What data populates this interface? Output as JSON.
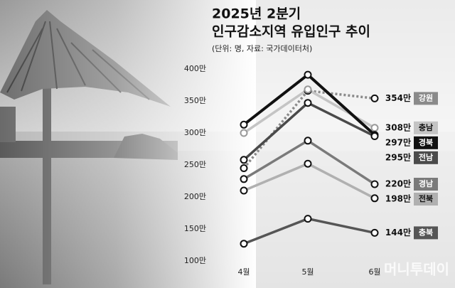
{
  "chart_data": {
    "type": "line",
    "title": [
      "2025년 2분기",
      "인구감소지역 유입인구 추이"
    ],
    "subtitle": "(단위: 명, 자료: 국가데이터처)",
    "categories": [
      "4월",
      "5월",
      "6월"
    ],
    "ylim": [
      100,
      400
    ],
    "yticks": [
      {
        "value": 100,
        "label": "100만"
      },
      {
        "value": 150,
        "label": "150만"
      },
      {
        "value": 200,
        "label": "200만"
      },
      {
        "value": 250,
        "label": "250만"
      },
      {
        "value": 300,
        "label": "300만"
      },
      {
        "value": 350,
        "label": "350만"
      },
      {
        "value": 400,
        "label": "400만"
      }
    ],
    "series": [
      {
        "name": "강원",
        "color": "#8a8a8a",
        "dashed": true,
        "values": [
          245,
          366,
          354
        ],
        "value_labels": [
          null,
          null,
          "354만"
        ]
      },
      {
        "name": "충남",
        "color": "#c4c4c4",
        "values": [
          300,
          368,
          308
        ],
        "value_labels": [
          null,
          null,
          "308만"
        ]
      },
      {
        "name": "경북",
        "color": "#111111",
        "values": [
          313,
          391,
          297
        ],
        "value_labels": [
          null,
          null,
          "297만"
        ]
      },
      {
        "name": "전남",
        "color": "#4a4a4a",
        "values": [
          258,
          347,
          295
        ],
        "value_labels": [
          null,
          null,
          "295만"
        ]
      },
      {
        "name": "경남",
        "color": "#7a7a7a",
        "values": [
          228,
          288,
          220
        ],
        "value_labels": [
          null,
          null,
          "220만"
        ]
      },
      {
        "name": "전북",
        "color": "#b0b0b0",
        "values": [
          210,
          252,
          198
        ],
        "value_labels": [
          null,
          null,
          "198만"
        ]
      },
      {
        "name": "충북",
        "color": "#555555",
        "values": [
          127,
          166,
          144
        ],
        "value_labels": [
          null,
          null,
          "144만"
        ]
      }
    ],
    "watermark": "머니투데이"
  }
}
